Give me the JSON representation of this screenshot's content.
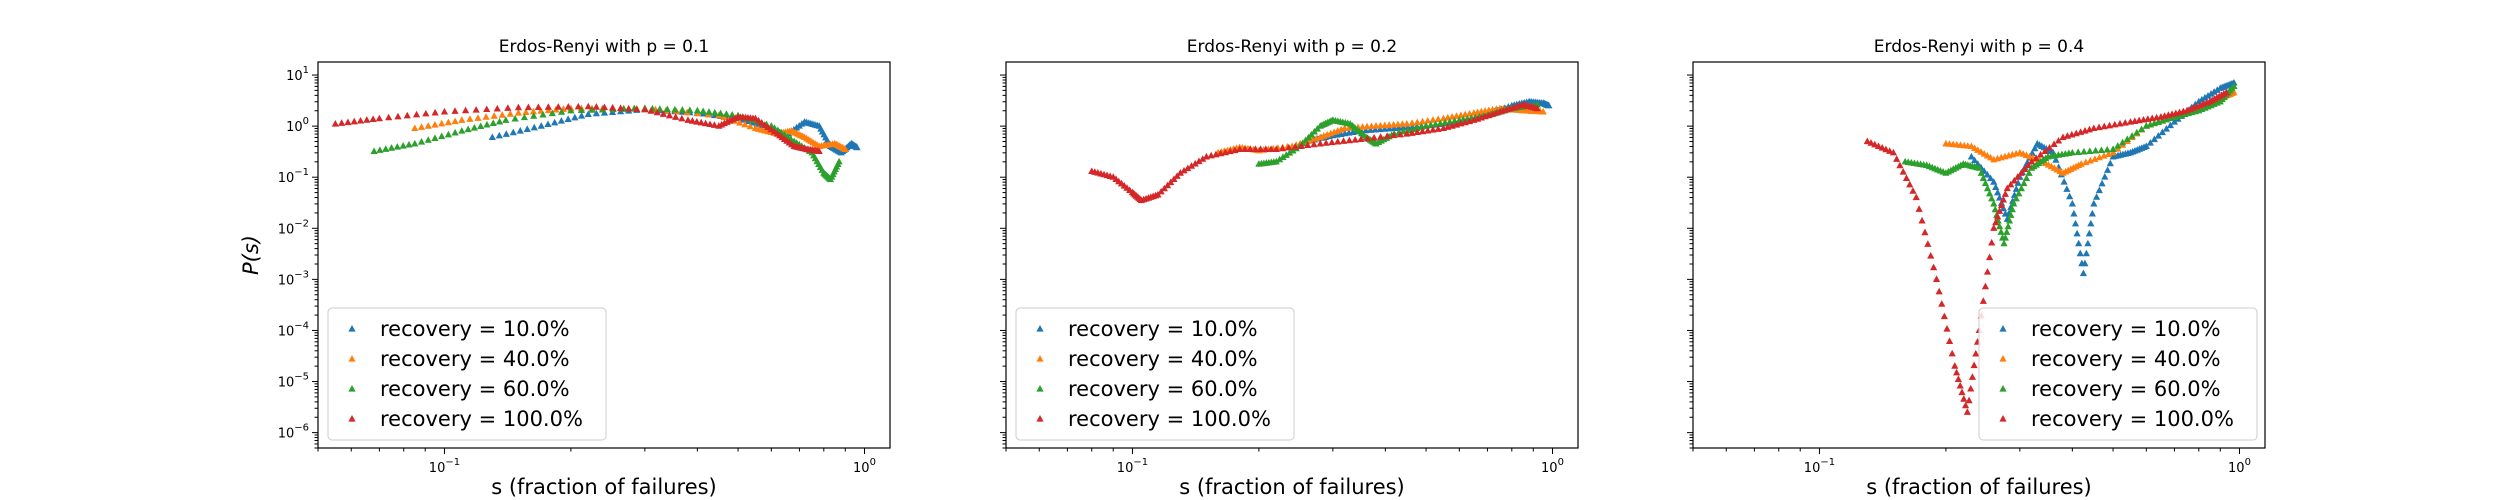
{
  "colors": {
    "blue": "#1f77b4",
    "orange": "#ff7f0e",
    "green": "#2ca02c",
    "red": "#d62728"
  },
  "chart_data": [
    {
      "type": "scatter",
      "title": "Erdos-Renyi with p = 0.1",
      "xlabel": "s (fraction of failures)",
      "ylabel": "P(s)",
      "xscale": "log",
      "yscale": "log",
      "xlim": [
        0.05,
        1.15
      ],
      "ylim": [
        5e-07,
        18
      ],
      "x_ticks": [
        "10^-1",
        "10^0"
      ],
      "y_ticks": [
        "10^-6",
        "10^-5",
        "10^-4",
        "10^-3",
        "10^-2",
        "10^-1",
        "10^0",
        "10^1"
      ],
      "marker": "triangle",
      "legend_position": "lower-left",
      "series": [
        {
          "name": "recovery = 10.0%",
          "color": "blue",
          "curve": [
            [
              0.13,
              0.6
            ],
            [
              0.17,
              1.0
            ],
            [
              0.22,
              1.7
            ],
            [
              0.3,
              2.1
            ],
            [
              0.4,
              1.8
            ],
            [
              0.5,
              1.4
            ],
            [
              0.6,
              0.9
            ],
            [
              0.65,
              0.65
            ],
            [
              0.72,
              1.2
            ],
            [
              0.78,
              1.0
            ],
            [
              0.83,
              0.4
            ],
            [
              0.88,
              0.3
            ],
            [
              0.93,
              0.45
            ],
            [
              0.96,
              0.38
            ]
          ]
        },
        {
          "name": "recovery = 40.0%",
          "color": "orange",
          "curve": [
            [
              0.085,
              0.9
            ],
            [
              0.11,
              1.3
            ],
            [
              0.15,
              1.8
            ],
            [
              0.2,
              2.2
            ],
            [
              0.3,
              2.2
            ],
            [
              0.45,
              1.6
            ],
            [
              0.55,
              0.9
            ],
            [
              0.62,
              0.7
            ],
            [
              0.67,
              0.8
            ],
            [
              0.72,
              0.6
            ],
            [
              0.78,
              0.4
            ],
            [
              0.85,
              0.45
            ],
            [
              0.9,
              0.35
            ]
          ]
        },
        {
          "name": "recovery = 60.0%",
          "color": "green",
          "curve": [
            [
              0.068,
              0.32
            ],
            [
              0.085,
              0.45
            ],
            [
              0.11,
              0.8
            ],
            [
              0.14,
              1.3
            ],
            [
              0.2,
              2.0
            ],
            [
              0.3,
              2.2
            ],
            [
              0.4,
              2.0
            ],
            [
              0.5,
              1.6
            ],
            [
              0.6,
              1.0
            ],
            [
              0.68,
              0.5
            ],
            [
              0.75,
              0.3
            ],
            [
              0.8,
              0.12
            ],
            [
              0.83,
              0.09
            ],
            [
              0.87,
              0.2
            ]
          ]
        },
        {
          "name": "recovery = 100.0%",
          "color": "red",
          "curve": [
            [
              0.055,
              1.1
            ],
            [
              0.07,
              1.4
            ],
            [
              0.1,
              1.9
            ],
            [
              0.15,
              2.3
            ],
            [
              0.22,
              2.4
            ],
            [
              0.3,
              2.1
            ],
            [
              0.38,
              1.3
            ],
            [
              0.45,
              1.0
            ],
            [
              0.5,
              1.5
            ],
            [
              0.55,
              1.4
            ],
            [
              0.62,
              0.7
            ],
            [
              0.68,
              0.4
            ],
            [
              0.73,
              0.35
            ],
            [
              0.78,
              0.32
            ]
          ]
        }
      ]
    },
    {
      "type": "scatter",
      "title": "Erdos-Renyi with p = 0.2",
      "xlabel": "s (fraction of failures)",
      "ylabel": "",
      "xscale": "log",
      "yscale": "log",
      "xlim": [
        0.05,
        1.15
      ],
      "ylim": [
        5e-07,
        18
      ],
      "x_ticks": [
        "10^-1",
        "10^0"
      ],
      "marker": "triangle",
      "legend_position": "lower-left",
      "series": [
        {
          "name": "recovery = 10.0%",
          "color": "blue",
          "curve": [
            [
              0.26,
              0.5
            ],
            [
              0.3,
              0.65
            ],
            [
              0.35,
              0.8
            ],
            [
              0.42,
              0.9
            ],
            [
              0.5,
              1.0
            ],
            [
              0.6,
              1.2
            ],
            [
              0.7,
              1.7
            ],
            [
              0.8,
              2.5
            ],
            [
              0.88,
              3.0
            ],
            [
              0.95,
              2.8
            ],
            [
              0.98,
              2.5
            ]
          ]
        },
        {
          "name": "recovery = 40.0%",
          "color": "orange",
          "curve": [
            [
              0.16,
              0.3
            ],
            [
              0.18,
              0.38
            ],
            [
              0.2,
              0.33
            ],
            [
              0.24,
              0.4
            ],
            [
              0.28,
              0.6
            ],
            [
              0.32,
              0.9
            ],
            [
              0.38,
              1.0
            ],
            [
              0.45,
              1.1
            ],
            [
              0.55,
              1.4
            ],
            [
              0.65,
              1.8
            ],
            [
              0.75,
              2.2
            ],
            [
              0.85,
              2.0
            ],
            [
              0.95,
              1.9
            ]
          ]
        },
        {
          "name": "recovery = 60.0%",
          "color": "green",
          "curve": [
            [
              0.2,
              0.18
            ],
            [
              0.22,
              0.2
            ],
            [
              0.25,
              0.4
            ],
            [
              0.28,
              1.0
            ],
            [
              0.3,
              1.3
            ],
            [
              0.33,
              1.1
            ],
            [
              0.36,
              0.6
            ],
            [
              0.38,
              0.45
            ],
            [
              0.42,
              0.7
            ],
            [
              0.5,
              1.0
            ],
            [
              0.6,
              1.3
            ],
            [
              0.7,
              1.6
            ],
            [
              0.8,
              2.2
            ],
            [
              0.92,
              2.6
            ]
          ]
        },
        {
          "name": "recovery = 100.0%",
          "color": "red",
          "curve": [
            [
              0.08,
              0.13
            ],
            [
              0.09,
              0.1
            ],
            [
              0.1,
              0.05
            ],
            [
              0.105,
              0.035
            ],
            [
              0.115,
              0.045
            ],
            [
              0.13,
              0.12
            ],
            [
              0.15,
              0.25
            ],
            [
              0.18,
              0.35
            ],
            [
              0.22,
              0.35
            ],
            [
              0.28,
              0.45
            ],
            [
              0.35,
              0.55
            ],
            [
              0.45,
              0.7
            ],
            [
              0.55,
              0.9
            ],
            [
              0.65,
              1.3
            ],
            [
              0.75,
              1.9
            ],
            [
              0.85,
              2.6
            ],
            [
              0.92,
              2.2
            ]
          ]
        }
      ]
    },
    {
      "type": "scatter",
      "title": "Erdos-Renyi with p = 0.4",
      "xlabel": "s (fraction of failures)",
      "ylabel": "",
      "xscale": "log",
      "yscale": "log",
      "xlim": [
        0.05,
        1.15
      ],
      "ylim": [
        5e-07,
        18
      ],
      "x_ticks": [
        "10^-1",
        "10^0"
      ],
      "marker": "triangle",
      "legend_position": "lower-right",
      "series": [
        {
          "name": "recovery = 10.0%",
          "color": "blue",
          "curve": [
            [
              0.23,
              0.25
            ],
            [
              0.26,
              0.08
            ],
            [
              0.28,
              0.015
            ],
            [
              0.3,
              0.1
            ],
            [
              0.33,
              0.45
            ],
            [
              0.36,
              0.3
            ],
            [
              0.4,
              0.03
            ],
            [
              0.425,
              0.0013
            ],
            [
              0.45,
              0.03
            ],
            [
              0.5,
              0.25
            ],
            [
              0.55,
              0.3
            ],
            [
              0.6,
              0.4
            ],
            [
              0.7,
              1.2
            ],
            [
              0.8,
              3.0
            ],
            [
              0.9,
              5.5
            ],
            [
              0.97,
              7.0
            ]
          ]
        },
        {
          "name": "recovery = 40.0%",
          "color": "orange",
          "curve": [
            [
              0.2,
              0.45
            ],
            [
              0.23,
              0.4
            ],
            [
              0.26,
              0.22
            ],
            [
              0.3,
              0.3
            ],
            [
              0.34,
              0.2
            ],
            [
              0.38,
              0.12
            ],
            [
              0.42,
              0.18
            ],
            [
              0.5,
              0.3
            ],
            [
              0.6,
              1.0
            ],
            [
              0.7,
              1.5
            ],
            [
              0.8,
              2.2
            ],
            [
              0.9,
              3.5
            ],
            [
              0.97,
              4.5
            ]
          ]
        },
        {
          "name": "recovery = 60.0%",
          "color": "green",
          "curve": [
            [
              0.16,
              0.2
            ],
            [
              0.18,
              0.17
            ],
            [
              0.2,
              0.12
            ],
            [
              0.22,
              0.18
            ],
            [
              0.24,
              0.15
            ],
            [
              0.26,
              0.03
            ],
            [
              0.275,
              0.005
            ],
            [
              0.29,
              0.03
            ],
            [
              0.32,
              0.15
            ],
            [
              0.35,
              0.25
            ],
            [
              0.4,
              0.3
            ],
            [
              0.5,
              0.35
            ],
            [
              0.6,
              1.0
            ],
            [
              0.7,
              1.5
            ],
            [
              0.8,
              2.0
            ],
            [
              0.9,
              3.0
            ],
            [
              0.97,
              6.0
            ]
          ]
        },
        {
          "name": "recovery = 100.0%",
          "color": "red",
          "curve": [
            [
              0.13,
              0.5
            ],
            [
              0.15,
              0.3
            ],
            [
              0.17,
              0.04
            ],
            [
              0.19,
              0.001
            ],
            [
              0.21,
              2e-05
            ],
            [
              0.225,
              2.5e-06
            ],
            [
              0.24,
              0.0001
            ],
            [
              0.26,
              0.01
            ],
            [
              0.28,
              0.06
            ],
            [
              0.32,
              0.2
            ],
            [
              0.38,
              0.6
            ],
            [
              0.45,
              0.9
            ],
            [
              0.55,
              1.2
            ],
            [
              0.65,
              1.5
            ],
            [
              0.75,
              2.0
            ],
            [
              0.85,
              3.0
            ],
            [
              0.93,
              4.5
            ]
          ]
        }
      ]
    }
  ]
}
